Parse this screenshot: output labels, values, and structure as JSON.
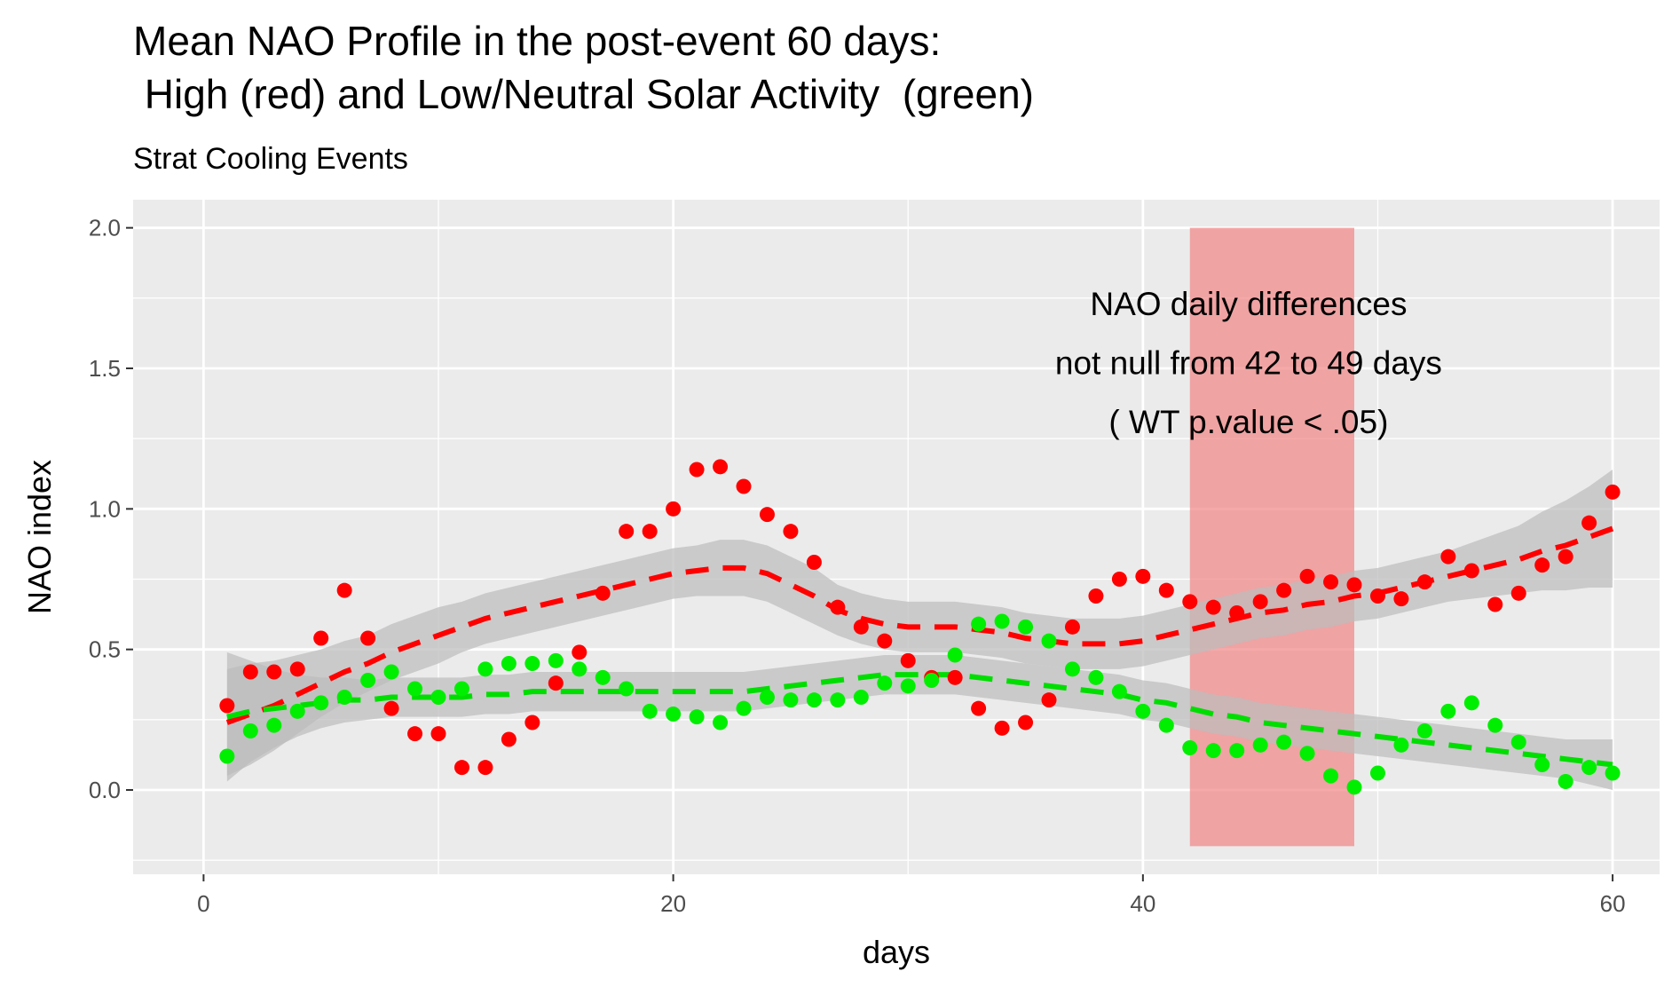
{
  "chart_data": {
    "type": "scatter",
    "title_line1": "Mean NAO Profile in the post-event 60 days:",
    "title_line2": " High (red) and Low/Neutral Solar Activity  (green)",
    "subtitle": "Strat Cooling Events",
    "xlabel": "days",
    "ylabel": "NAO index",
    "xlim": [
      -3,
      62
    ],
    "ylim": [
      -0.3,
      2.1
    ],
    "xticks": [
      0,
      20,
      40,
      60
    ],
    "yticks": [
      0.0,
      0.5,
      1.0,
      1.5,
      2.0
    ],
    "xtick_labels": [
      "0",
      "20",
      "40",
      "60"
    ],
    "ytick_labels": [
      "0.0",
      "0.5",
      "1.0",
      "1.5",
      "2.0"
    ],
    "grid": true,
    "colors": {
      "high": "#ff0000",
      "low": "#00ee00",
      "low_line": "#00dd00",
      "band": "#f08080",
      "ribbon": "#bdbdbd",
      "panel": "#ebebeb"
    },
    "highlight": {
      "x_start": 42,
      "x_end": 49,
      "y_start": -0.2,
      "y_end": 2.0
    },
    "annotation": [
      "NAO daily differences",
      "not null from 42 to 49 days",
      "( WT p.value < .05)"
    ],
    "series": [
      {
        "key": "high",
        "x": [
          1,
          2,
          3,
          4,
          5,
          6,
          7,
          8,
          9,
          10,
          11,
          12,
          13,
          14,
          15,
          16,
          17,
          18,
          19,
          20,
          21,
          22,
          23,
          24,
          25,
          26,
          27,
          28,
          29,
          30,
          31,
          32,
          33,
          34,
          35,
          36,
          37,
          38,
          39,
          40,
          41,
          42,
          43,
          44,
          45,
          46,
          47,
          48,
          49,
          50,
          51,
          52,
          53,
          54,
          55,
          56,
          57,
          58,
          59,
          60
        ],
        "values": [
          0.3,
          0.42,
          0.42,
          0.43,
          0.54,
          0.71,
          0.54,
          0.29,
          0.2,
          0.2,
          0.08,
          0.08,
          0.18,
          0.24,
          0.38,
          0.49,
          0.7,
          0.92,
          0.92,
          1.0,
          1.14,
          1.15,
          1.08,
          0.98,
          0.92,
          0.81,
          0.65,
          0.58,
          0.53,
          0.46,
          0.4,
          0.4,
          0.29,
          0.22,
          0.24,
          0.32,
          0.58,
          0.69,
          0.75,
          0.76,
          0.71,
          0.67,
          0.65,
          0.63,
          0.67,
          0.71,
          0.76,
          0.74,
          0.73,
          0.69,
          0.68,
          0.74,
          0.83,
          0.78,
          0.66,
          0.7,
          0.8,
          0.83,
          0.95,
          1.06
        ],
        "smooth": [
          0.24,
          0.27,
          0.3,
          0.34,
          0.38,
          0.42,
          0.45,
          0.49,
          0.52,
          0.55,
          0.58,
          0.61,
          0.63,
          0.65,
          0.67,
          0.69,
          0.71,
          0.73,
          0.75,
          0.77,
          0.78,
          0.79,
          0.79,
          0.77,
          0.73,
          0.69,
          0.64,
          0.61,
          0.59,
          0.58,
          0.58,
          0.58,
          0.57,
          0.56,
          0.54,
          0.53,
          0.52,
          0.52,
          0.52,
          0.53,
          0.55,
          0.57,
          0.59,
          0.61,
          0.63,
          0.64,
          0.66,
          0.67,
          0.69,
          0.7,
          0.72,
          0.74,
          0.76,
          0.78,
          0.8,
          0.82,
          0.85,
          0.87,
          0.9,
          0.93
        ],
        "se": [
          0.19,
          0.18,
          0.16,
          0.14,
          0.12,
          0.11,
          0.1,
          0.1,
          0.1,
          0.1,
          0.09,
          0.09,
          0.09,
          0.09,
          0.09,
          0.09,
          0.09,
          0.09,
          0.09,
          0.09,
          0.09,
          0.1,
          0.1,
          0.1,
          0.1,
          0.1,
          0.09,
          0.09,
          0.09,
          0.09,
          0.09,
          0.09,
          0.09,
          0.09,
          0.09,
          0.09,
          0.09,
          0.09,
          0.09,
          0.09,
          0.09,
          0.09,
          0.09,
          0.09,
          0.09,
          0.09,
          0.09,
          0.09,
          0.09,
          0.09,
          0.09,
          0.09,
          0.09,
          0.1,
          0.11,
          0.12,
          0.14,
          0.16,
          0.18,
          0.21
        ]
      },
      {
        "key": "low",
        "x": [
          1,
          2,
          3,
          4,
          5,
          6,
          7,
          8,
          9,
          10,
          11,
          12,
          13,
          14,
          15,
          16,
          17,
          18,
          19,
          20,
          21,
          22,
          23,
          24,
          25,
          26,
          27,
          28,
          29,
          30,
          31,
          32,
          33,
          34,
          35,
          36,
          37,
          38,
          39,
          40,
          41,
          42,
          43,
          44,
          45,
          46,
          47,
          48,
          49,
          50,
          51,
          52,
          53,
          54,
          55,
          56,
          57,
          58,
          59,
          60
        ],
        "values": [
          0.12,
          0.21,
          0.23,
          0.28,
          0.31,
          0.33,
          0.39,
          0.42,
          0.36,
          0.33,
          0.36,
          0.43,
          0.45,
          0.45,
          0.46,
          0.43,
          0.4,
          0.36,
          0.28,
          0.27,
          0.26,
          0.24,
          0.29,
          0.33,
          0.32,
          0.32,
          0.32,
          0.33,
          0.38,
          0.37,
          0.39,
          0.48,
          0.59,
          0.6,
          0.58,
          0.53,
          0.43,
          0.4,
          0.35,
          0.28,
          0.23,
          0.15,
          0.14,
          0.14,
          0.16,
          0.17,
          0.13,
          0.05,
          0.01,
          0.06,
          0.16,
          0.21,
          0.28,
          0.31,
          0.23,
          0.17,
          0.09,
          0.03,
          0.08,
          0.06
        ],
        "smooth": [
          0.26,
          0.28,
          0.29,
          0.3,
          0.31,
          0.32,
          0.32,
          0.33,
          0.33,
          0.33,
          0.33,
          0.34,
          0.34,
          0.35,
          0.35,
          0.35,
          0.35,
          0.35,
          0.35,
          0.35,
          0.35,
          0.35,
          0.35,
          0.36,
          0.37,
          0.38,
          0.39,
          0.4,
          0.41,
          0.41,
          0.41,
          0.41,
          0.4,
          0.39,
          0.38,
          0.37,
          0.36,
          0.35,
          0.34,
          0.32,
          0.31,
          0.29,
          0.27,
          0.26,
          0.24,
          0.23,
          0.22,
          0.21,
          0.2,
          0.19,
          0.18,
          0.17,
          0.16,
          0.15,
          0.14,
          0.13,
          0.12,
          0.11,
          0.1,
          0.09
        ],
        "se": [
          0.23,
          0.18,
          0.14,
          0.11,
          0.09,
          0.08,
          0.07,
          0.07,
          0.07,
          0.07,
          0.07,
          0.07,
          0.07,
          0.07,
          0.07,
          0.07,
          0.07,
          0.07,
          0.07,
          0.07,
          0.07,
          0.07,
          0.07,
          0.07,
          0.07,
          0.07,
          0.07,
          0.07,
          0.07,
          0.07,
          0.07,
          0.07,
          0.07,
          0.07,
          0.07,
          0.07,
          0.07,
          0.07,
          0.07,
          0.07,
          0.07,
          0.07,
          0.07,
          0.07,
          0.07,
          0.07,
          0.07,
          0.07,
          0.07,
          0.07,
          0.07,
          0.07,
          0.07,
          0.07,
          0.07,
          0.07,
          0.07,
          0.07,
          0.08,
          0.09
        ]
      }
    ]
  }
}
